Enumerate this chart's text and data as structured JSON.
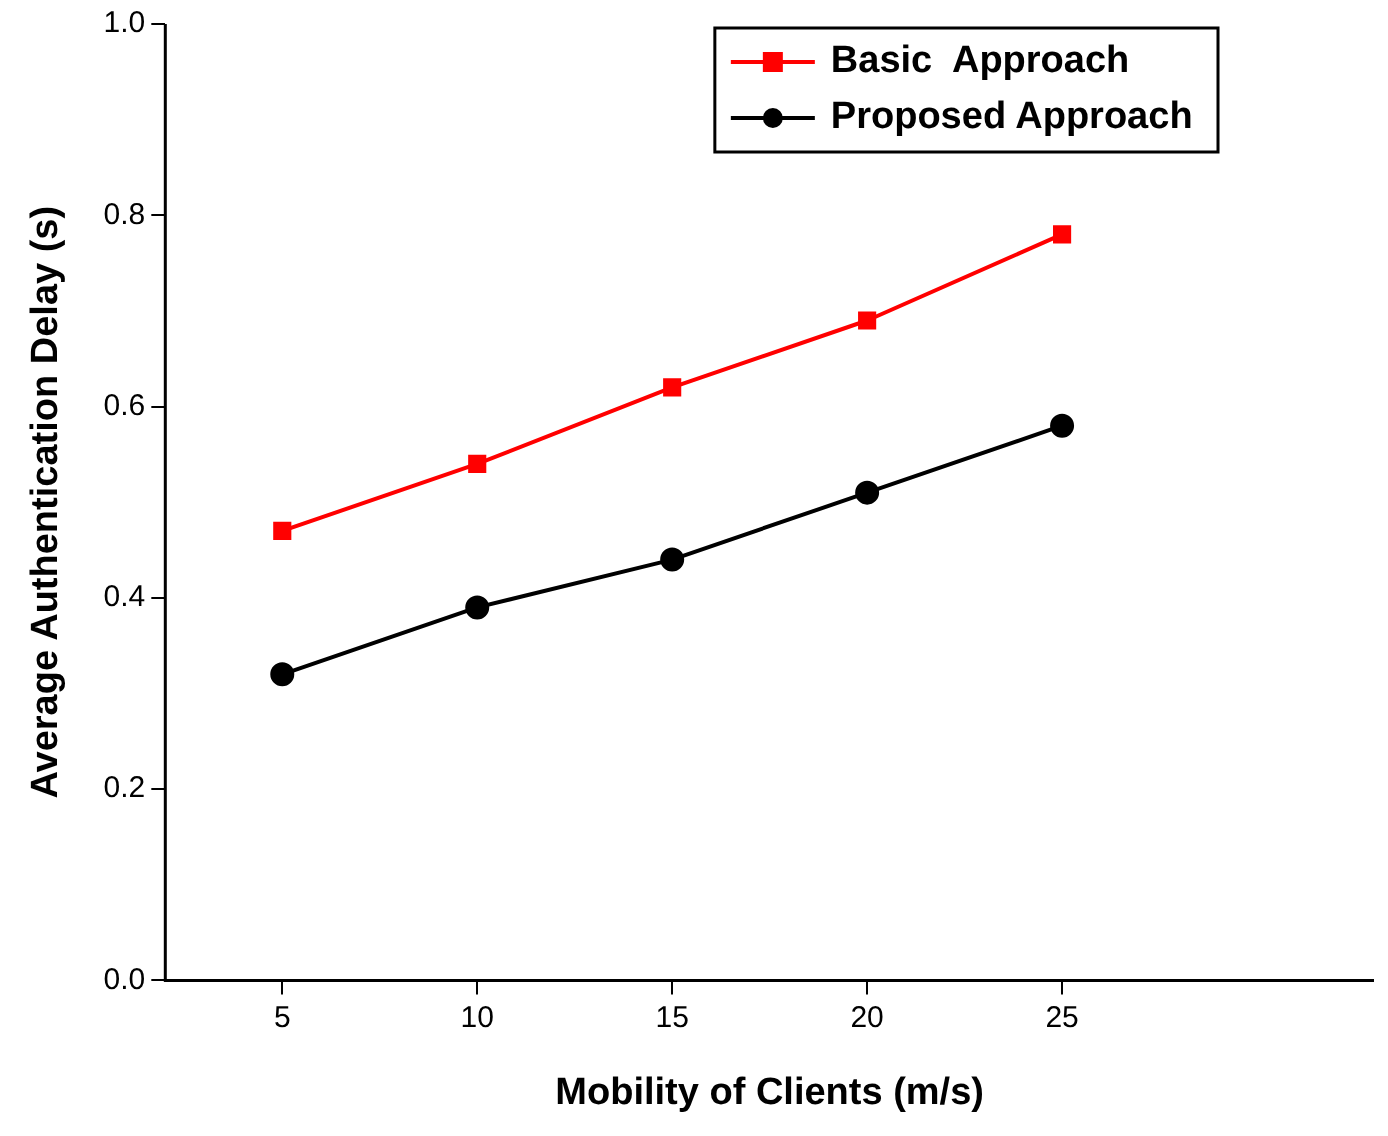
{
  "chart_data": {
    "type": "line",
    "xlabel": "Mobility of Clients (m/s)",
    "ylabel": "Average Authentication Delay (s)",
    "x": [
      5,
      10,
      15,
      20,
      25
    ],
    "series": [
      {
        "name": "Basic  Approach",
        "color": "#ff0000",
        "marker": "square",
        "values": [
          0.47,
          0.54,
          0.62,
          0.69,
          0.78
        ]
      },
      {
        "name": "Proposed Approach",
        "color": "#000000",
        "marker": "circle",
        "values": [
          0.32,
          0.39,
          0.44,
          0.51,
          0.58
        ]
      }
    ],
    "xlim": [
      2,
      33
    ],
    "xticks": [
      5,
      10,
      15,
      20,
      25
    ],
    "ylim": [
      0,
      1
    ],
    "yticks": [
      {
        "value": 0,
        "label": "0.0"
      },
      {
        "value": 0.2,
        "label": "0.2"
      },
      {
        "value": 0.4,
        "label": "0.4"
      },
      {
        "value": 0.6,
        "label": "0.6"
      },
      {
        "value": 0.8,
        "label": "0.8"
      },
      {
        "value": 1,
        "label": "1.0"
      }
    ],
    "grid": false,
    "legend": "top right",
    "line_style": "solid"
  }
}
